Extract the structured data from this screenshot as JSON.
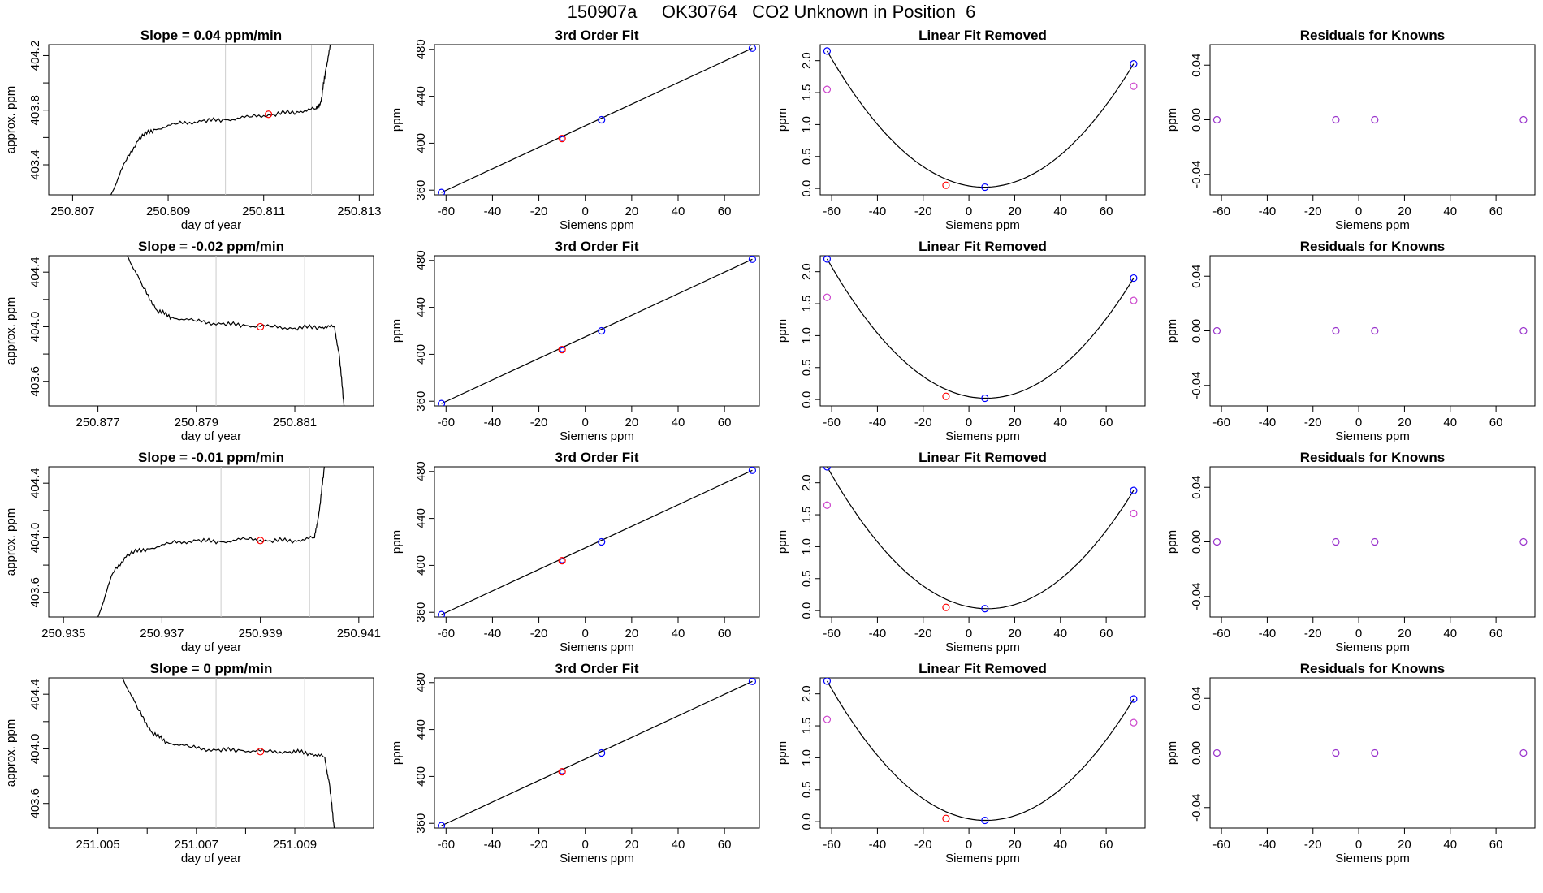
{
  "page_title": "150907a     OK30764   CO2 Unknown in Position  6",
  "colors": {
    "known": "#0000ff",
    "unknown": "#ff0000",
    "residual": "#9933cc",
    "linearfit": "#cc44cc",
    "grid": "#cccccc",
    "line": "#000000"
  },
  "chart_data": [
    {
      "type": "line",
      "title": "Slope =  0.04  ppm/min",
      "xlabel": "day of year",
      "ylabel": "approx. ppm",
      "xlim": [
        250.8065,
        250.8133
      ],
      "ylim": [
        403.18,
        404.28
      ],
      "xticks": [
        250.807,
        250.809,
        250.811,
        250.813
      ],
      "xtick_labels": [
        "250.807",
        "250.809",
        "250.811",
        "250.813"
      ],
      "yticks": [
        403.4,
        403.6,
        403.8,
        404.0,
        404.2
      ],
      "ytick_labels": [
        "403.4",
        "",
        "403.8",
        "",
        "404.2"
      ],
      "vlines": [
        250.8102,
        250.812
      ],
      "point": {
        "x": 250.8111,
        "y": 403.77
      },
      "x": [
        250.8078,
        250.8081,
        250.8084,
        250.8087,
        250.8092,
        250.8097,
        250.8102,
        250.8107,
        250.8112,
        250.8117,
        250.8121,
        250.8122,
        250.8123,
        250.8124
      ],
      "y": [
        403.18,
        403.42,
        403.6,
        403.66,
        403.7,
        403.72,
        403.73,
        403.75,
        403.77,
        403.79,
        403.81,
        403.86,
        404.1,
        404.28
      ]
    },
    {
      "type": "line",
      "title": "Slope =  -0.02  ppm/min",
      "xlabel": "day of year",
      "ylabel": "approx. ppm",
      "xlim": [
        250.876,
        250.8826
      ],
      "ylim": [
        403.42,
        404.52
      ],
      "xticks": [
        250.877,
        250.879,
        250.881
      ],
      "xtick_labels": [
        "250.877",
        "250.879",
        "250.881"
      ],
      "yticks": [
        403.6,
        403.8,
        404.0,
        404.2,
        404.4
      ],
      "ytick_labels": [
        "403.6",
        "",
        "404.0",
        "",
        "404.4"
      ],
      "vlines": [
        250.8794,
        250.8812
      ],
      "point": {
        "x": 250.8803,
        "y": 404.0
      },
      "x": [
        250.8776,
        250.8779,
        250.8782,
        250.8785,
        250.879,
        250.8795,
        250.88,
        250.8805,
        250.881,
        250.8815,
        250.8818,
        250.8819,
        250.882
      ],
      "y": [
        404.52,
        404.3,
        404.12,
        404.07,
        404.04,
        404.02,
        404.01,
        404.0,
        403.99,
        404.0,
        404.0,
        403.8,
        403.42
      ]
    },
    {
      "type": "line",
      "title": "Slope =  -0.01  ppm/min",
      "xlabel": "day of year",
      "ylabel": "approx. ppm",
      "xlim": [
        250.9347,
        250.9413
      ],
      "ylim": [
        403.42,
        404.52
      ],
      "xticks": [
        250.935,
        250.937,
        250.939,
        250.941
      ],
      "xtick_labels": [
        "250.935",
        "250.937",
        "250.939",
        "250.941"
      ],
      "yticks": [
        403.6,
        403.8,
        404.0,
        404.2,
        404.4
      ],
      "ytick_labels": [
        "403.6",
        "",
        "404.0",
        "",
        "404.4"
      ],
      "vlines": [
        250.9382,
        250.94
      ],
      "point": {
        "x": 250.939,
        "y": 403.98
      },
      "x": [
        250.9357,
        250.936,
        250.9363,
        250.9367,
        250.9372,
        250.9377,
        250.9382,
        250.9387,
        250.9392,
        250.9397,
        250.9401,
        250.9402,
        250.9403
      ],
      "y": [
        403.42,
        403.74,
        403.88,
        403.92,
        403.96,
        403.98,
        403.97,
        403.99,
        403.98,
        403.98,
        404.0,
        404.2,
        404.52
      ]
    },
    {
      "type": "line",
      "title": "Slope =  0  ppm/min",
      "xlabel": "day of year",
      "ylabel": "approx. ppm",
      "xlim": [
        251.004,
        251.0106
      ],
      "ylim": [
        403.42,
        404.52
      ],
      "xticks": [
        251.005,
        251.006,
        251.007,
        251.008,
        251.009
      ],
      "xtick_labels": [
        "251.005",
        "",
        "251.007",
        "",
        "251.009"
      ],
      "vlines": [
        251.0074,
        251.0092
      ],
      "point": {
        "x": 251.0083,
        "y": 403.98
      },
      "yticks": [
        403.6,
        403.8,
        404.0,
        404.2,
        404.4
      ],
      "ytick_labels": [
        "403.6",
        "",
        "404.0",
        "",
        "404.4"
      ],
      "x": [
        251.0055,
        251.0058,
        251.0061,
        251.0064,
        251.0069,
        251.0074,
        251.0079,
        251.0084,
        251.0089,
        251.0093,
        251.0096,
        251.0097,
        251.0098
      ],
      "y": [
        404.52,
        404.3,
        404.12,
        404.05,
        404.01,
        403.99,
        403.99,
        403.98,
        403.98,
        403.97,
        403.94,
        403.75,
        403.42
      ]
    },
    {
      "type": "line",
      "title": "3rd Order Fit",
      "xlabel": "Siemens ppm",
      "ylabel": "ppm",
      "xlim": [
        -65,
        75
      ],
      "ylim": [
        356,
        484
      ],
      "xticks": [
        -60,
        -40,
        -20,
        0,
        20,
        40,
        60
      ],
      "xtick_labels": [
        "-60",
        "-40",
        "-20",
        "0",
        "20",
        "40",
        "60"
      ],
      "yticks": [
        360,
        400,
        440,
        480
      ],
      "ytick_labels": [
        "360",
        "400",
        "440",
        "480"
      ],
      "knowns": {
        "x": [
          -62,
          7,
          72
        ],
        "y": [
          358,
          420,
          481
        ]
      },
      "unknown": {
        "x": [
          -10
        ],
        "y": [
          404
        ]
      }
    },
    {
      "type": "line",
      "title": "Linear Fit Removed",
      "xlabel": "Siemens ppm",
      "ylabel": "ppm",
      "xlim": [
        -65,
        77
      ],
      "ylim": [
        -0.1,
        2.25
      ],
      "xticks": [
        -60,
        -40,
        -20,
        0,
        20,
        40,
        60
      ],
      "xtick_labels": [
        "-60",
        "-40",
        "-20",
        "0",
        "20",
        "40",
        "60"
      ],
      "yticks": [
        0.0,
        0.5,
        1.0,
        1.5,
        2.0
      ],
      "ytick_labels": [
        "0.0",
        "0.5",
        "1.0",
        "1.5",
        "2.0"
      ],
      "knowns": {
        "x": [
          -62,
          7,
          72
        ],
        "y": [
          2.15,
          0.02,
          1.95
        ]
      },
      "unknown": {
        "x": [
          -10
        ],
        "y": [
          0.05
        ]
      },
      "linear": {
        "x": [
          -62,
          72
        ],
        "y": [
          1.55,
          1.6
        ]
      }
    },
    {
      "type": "scatter",
      "title": "Residuals for Knowns",
      "xlabel": "Siemens ppm",
      "ylabel": "ppm",
      "xlim": [
        -65,
        77
      ],
      "ylim": [
        -0.055,
        0.055
      ],
      "xticks": [
        -60,
        -40,
        -20,
        0,
        20,
        40,
        60
      ],
      "xtick_labels": [
        "-60",
        "-40",
        "-20",
        "0",
        "20",
        "40",
        "60"
      ],
      "yticks": [
        -0.04,
        0.0,
        0.04
      ],
      "ytick_labels": [
        "-0.04",
        "0.00",
        "0.04"
      ],
      "points": {
        "x": [
          -62,
          -10,
          7,
          72
        ],
        "y": [
          0,
          0,
          0,
          0
        ]
      }
    }
  ]
}
